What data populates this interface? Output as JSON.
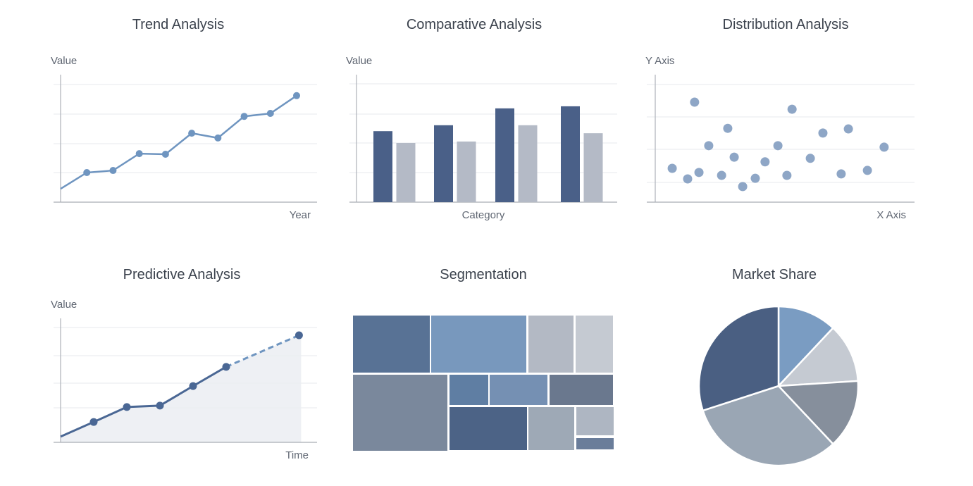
{
  "chart_data": [
    {
      "type": "line",
      "title": "Trend Analysis",
      "xlabel": "Year",
      "ylabel": "Value",
      "x": [
        0,
        1,
        2,
        3,
        4,
        5,
        6,
        7,
        8,
        9
      ],
      "values": [
        0.45,
        1.0,
        1.07,
        1.64,
        1.62,
        2.33,
        2.17,
        2.9,
        3.0,
        3.6
      ],
      "ylim": [
        0,
        4
      ],
      "grid": true,
      "color": "#6f95c0"
    },
    {
      "type": "bar",
      "title": "Comparative Analysis",
      "xlabel": "Category",
      "ylabel": "Value",
      "categories": [
        "",
        "",
        "",
        ""
      ],
      "series": [
        {
          "values": [
            2.4,
            2.6,
            3.17,
            3.24
          ],
          "color": "#4a6088"
        },
        {
          "values": [
            2.0,
            2.05,
            2.6,
            2.33
          ],
          "color": "#b4bac6"
        }
      ],
      "ylim": [
        0,
        4
      ],
      "grid": true
    },
    {
      "type": "scatter",
      "title": "Distribution Analysis",
      "xlabel": "X Axis",
      "ylabel": "Y Axis",
      "points": [
        [
          0.66,
          1.15
        ],
        [
          1.26,
          0.79
        ],
        [
          1.53,
          3.4
        ],
        [
          1.7,
          1.01
        ],
        [
          2.08,
          1.92
        ],
        [
          2.58,
          0.91
        ],
        [
          2.82,
          2.51
        ],
        [
          3.07,
          1.53
        ],
        [
          3.4,
          0.53
        ],
        [
          3.89,
          0.81
        ],
        [
          4.27,
          1.37
        ],
        [
          4.77,
          1.92
        ],
        [
          5.12,
          0.91
        ],
        [
          5.32,
          3.16
        ],
        [
          6.03,
          1.49
        ],
        [
          6.52,
          2.35
        ],
        [
          7.23,
          0.96
        ],
        [
          7.51,
          2.49
        ],
        [
          8.25,
          1.08
        ],
        [
          8.9,
          1.87
        ]
      ],
      "xlim": [
        0,
        10
      ],
      "ylim": [
        0,
        4
      ],
      "grid": true,
      "color": "#8ea6c6"
    },
    {
      "type": "area",
      "title": "Predictive Analysis",
      "xlabel": "Time",
      "ylabel": "Value",
      "actual": {
        "x": [
          0,
          1,
          2,
          3,
          4,
          5
        ],
        "values": [
          0.2,
          0.71,
          1.23,
          1.28,
          1.96,
          2.63
        ],
        "color": "#4a6794"
      },
      "forecast": {
        "x": [
          5,
          7.2
        ],
        "values": [
          2.63,
          3.73
        ],
        "color": "#6f95c0",
        "style": "dashed"
      },
      "xlim": [
        0,
        7.2
      ],
      "ylim": [
        0,
        4
      ],
      "grid": true,
      "fill_color": "#eef0f4"
    },
    {
      "type": "treemap",
      "title": "Segmentation",
      "segments": [
        {
          "value": 12.4,
          "color": "#587295"
        },
        {
          "value": 15.4,
          "color": "#7898bd"
        },
        {
          "value": 7.3,
          "color": "#b3b9c4"
        },
        {
          "value": 6.0,
          "color": "#c5cad2"
        },
        {
          "value": 20.4,
          "color": "#7a889c"
        },
        {
          "value": 3.3,
          "color": "#5f7ea3"
        },
        {
          "value": 5.0,
          "color": "#7590b3"
        },
        {
          "value": 5.4,
          "color": "#6a788e"
        },
        {
          "value": 9.4,
          "color": "#4c6386"
        },
        {
          "value": 5.6,
          "color": "#9ea9b6"
        },
        {
          "value": 3.0,
          "color": "#aeb6c2"
        },
        {
          "value": 1.2,
          "color": "#6a7d9a"
        }
      ]
    },
    {
      "type": "pie",
      "title": "Market Share",
      "values": [
        12,
        12,
        14,
        32,
        30
      ],
      "colors": [
        "#7a9cc2",
        "#c5cad2",
        "#868f9c",
        "#9aa6b4",
        "#4a5f82"
      ]
    }
  ]
}
